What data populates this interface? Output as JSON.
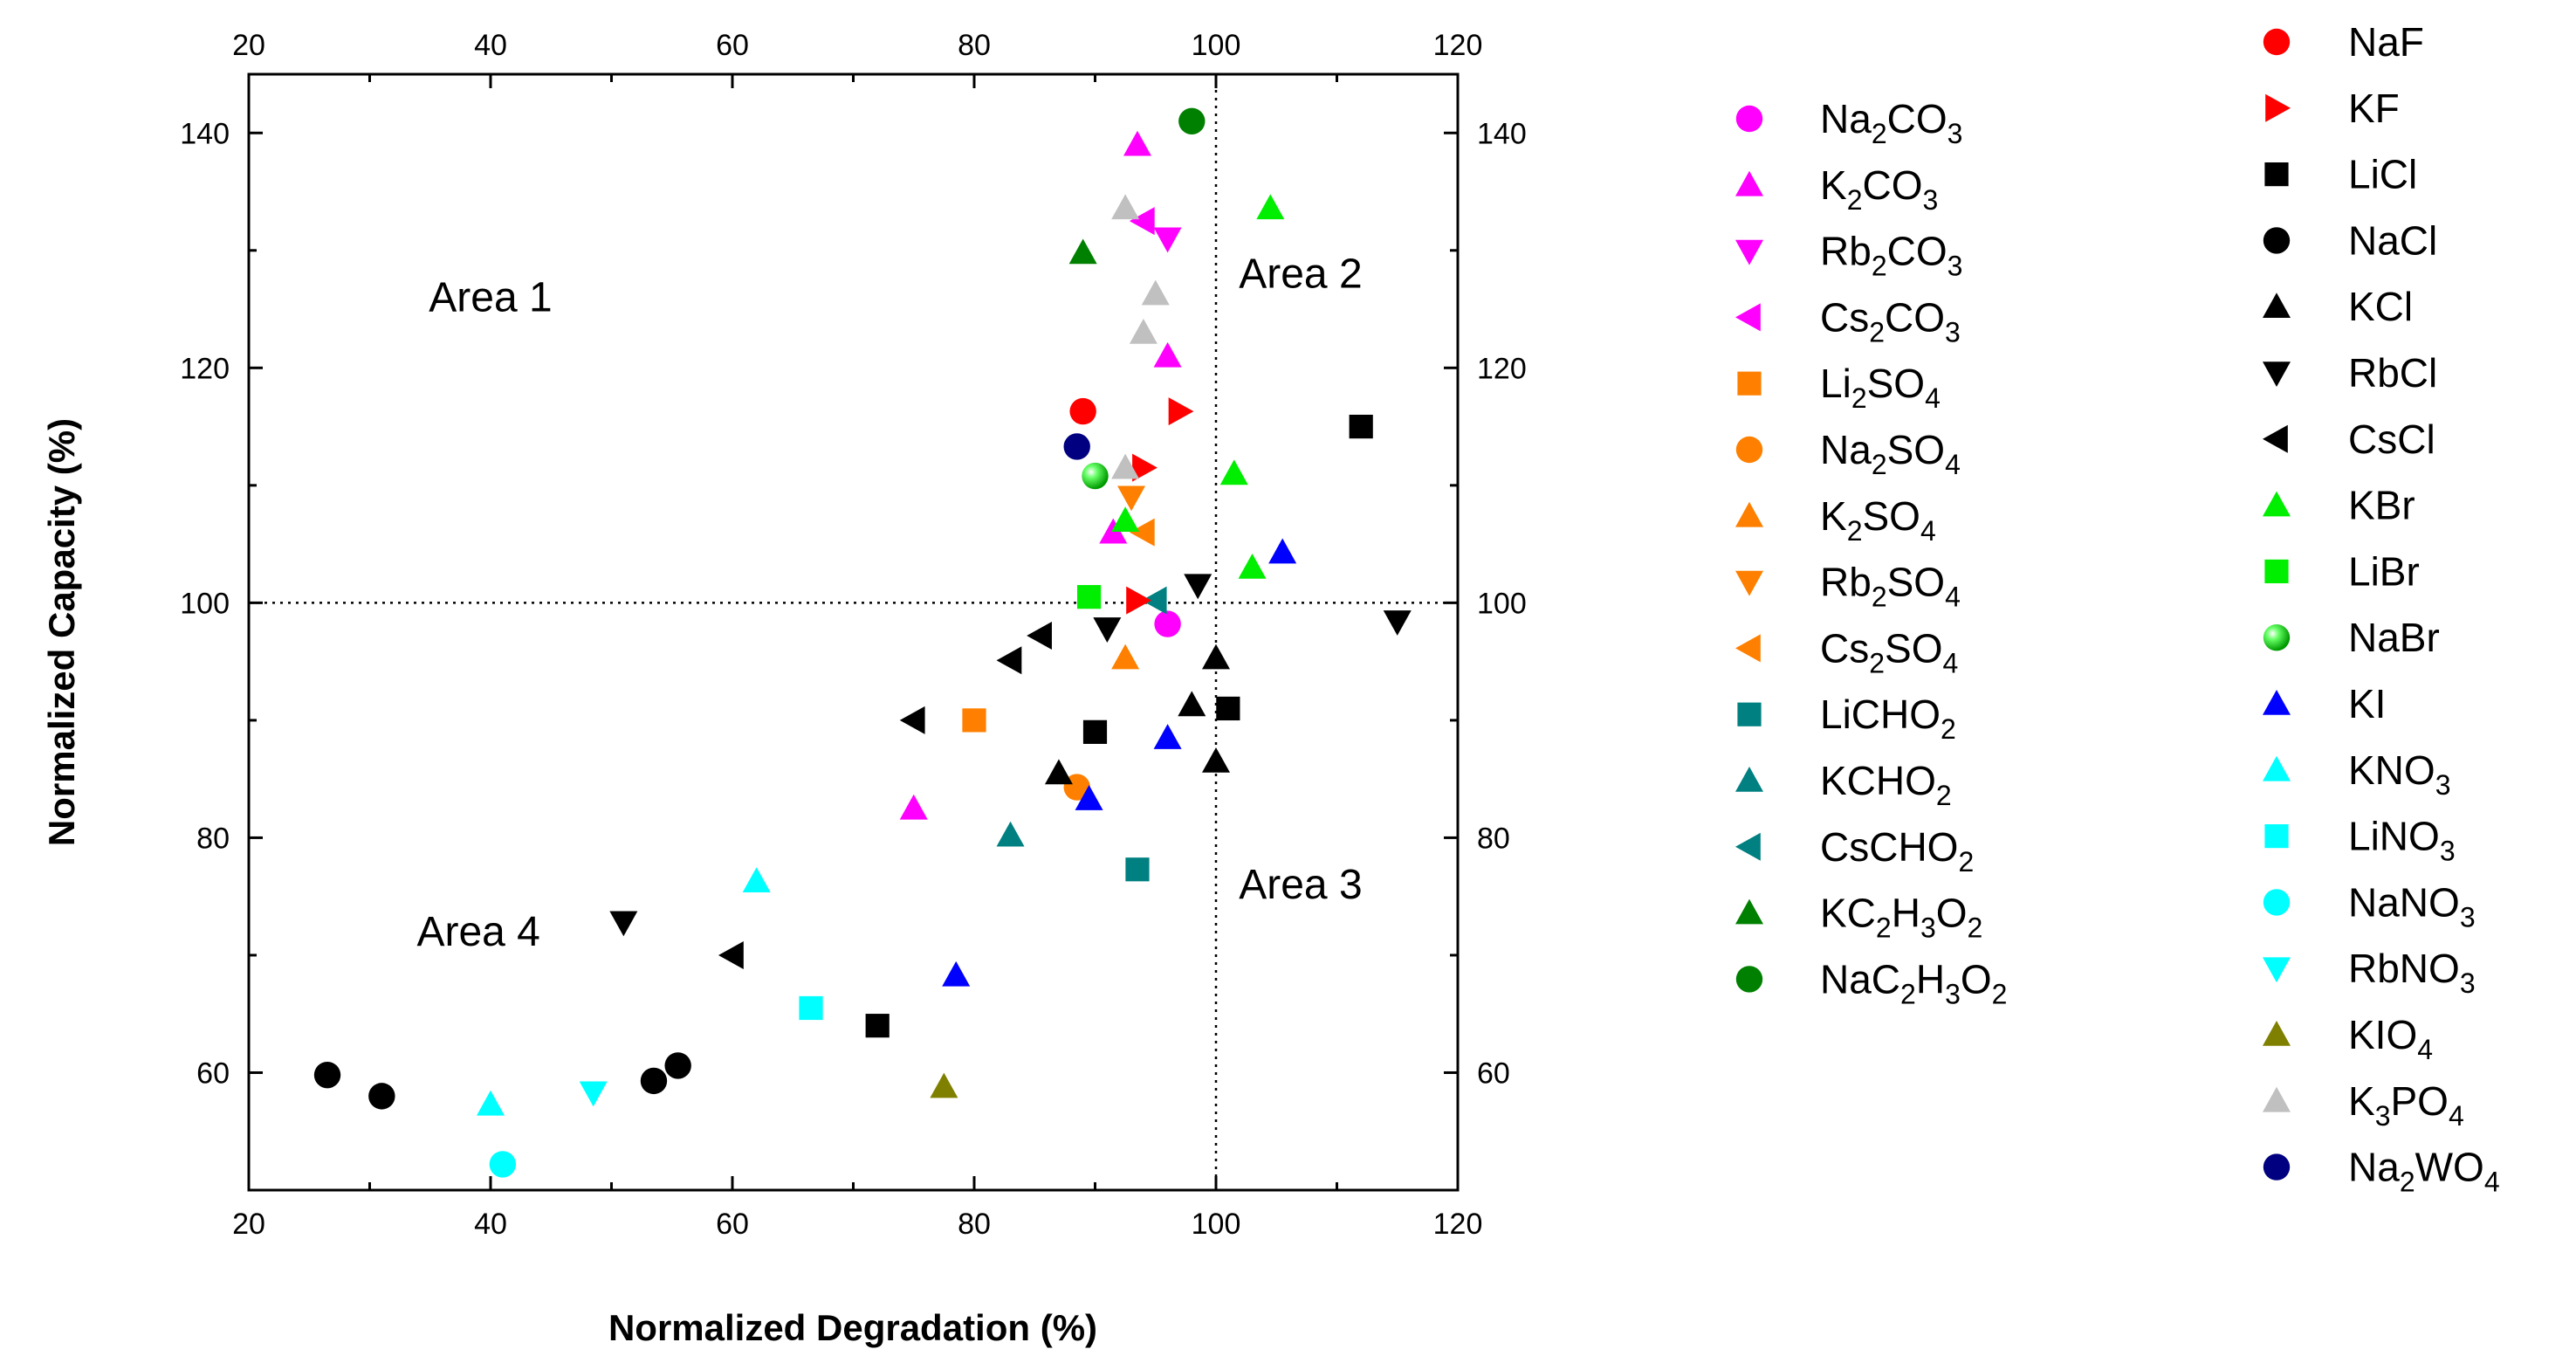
{
  "chart_data": {
    "type": "scatter",
    "title": "",
    "xlabel": "Normalized Degradation (%)",
    "ylabel": "Normalized Capacity (%)",
    "xlim": [
      20,
      120
    ],
    "ylim": [
      50,
      145
    ],
    "xticks": [
      20,
      40,
      60,
      80,
      100,
      120
    ],
    "yticks": [
      60,
      80,
      100,
      120,
      140
    ],
    "xtick_labels": [
      "20",
      "40",
      "60",
      "80",
      "100",
      "120"
    ],
    "ytick_labels": [
      "60",
      "80",
      "100",
      "120",
      "140"
    ],
    "reference_lines": {
      "x": 100,
      "y": 100,
      "style": "dotted"
    },
    "areas": [
      {
        "label": "Area 1",
        "x": 40,
        "y": 126
      },
      {
        "label": "Area 2",
        "x": 107,
        "y": 128
      },
      {
        "label": "Area 3",
        "x": 107,
        "y": 76
      },
      {
        "label": "Area 4",
        "x": 39,
        "y": 72
      }
    ],
    "series": [
      {
        "name": "Na2CO3",
        "parts": [
          [
            "Na",
            ""
          ],
          [
            "2",
            "sub"
          ],
          [
            "CO",
            ""
          ],
          [
            "3",
            "sub"
          ]
        ],
        "color": "#ff00ff",
        "marker": "circle",
        "points": [
          [
            96,
            98.2
          ]
        ]
      },
      {
        "name": "K2CO3",
        "parts": [
          [
            "K",
            ""
          ],
          [
            "2",
            "sub"
          ],
          [
            "CO",
            ""
          ],
          [
            "3",
            "sub"
          ]
        ],
        "color": "#ff00ff",
        "marker": "triangle-up",
        "points": [
          [
            93.5,
            139
          ],
          [
            96,
            121
          ],
          [
            91.5,
            106
          ],
          [
            75,
            82.5
          ]
        ]
      },
      {
        "name": "Rb2CO3",
        "parts": [
          [
            "Rb",
            ""
          ],
          [
            "2",
            "sub"
          ],
          [
            "CO",
            ""
          ],
          [
            "3",
            "sub"
          ]
        ],
        "color": "#ff00ff",
        "marker": "triangle-down",
        "points": [
          [
            96,
            131
          ]
        ]
      },
      {
        "name": "Cs2CO3",
        "parts": [
          [
            "Cs",
            ""
          ],
          [
            "2",
            "sub"
          ],
          [
            "CO",
            ""
          ],
          [
            "3",
            "sub"
          ]
        ],
        "color": "#ff00ff",
        "marker": "triangle-left",
        "points": [
          [
            94,
            132.5
          ]
        ]
      },
      {
        "name": "Li2SO4",
        "parts": [
          [
            "Li",
            ""
          ],
          [
            "2",
            "sub"
          ],
          [
            "SO",
            ""
          ],
          [
            "4",
            "sub"
          ]
        ],
        "color": "#ff8000",
        "marker": "square",
        "points": [
          [
            80,
            90
          ]
        ]
      },
      {
        "name": "Na2SO4",
        "parts": [
          [
            "Na",
            ""
          ],
          [
            "2",
            "sub"
          ],
          [
            "SO",
            ""
          ],
          [
            "4",
            "sub"
          ]
        ],
        "color": "#ff8000",
        "marker": "circle",
        "points": [
          [
            88.5,
            84.3
          ]
        ]
      },
      {
        "name": "K2SO4",
        "parts": [
          [
            "K",
            ""
          ],
          [
            "2",
            "sub"
          ],
          [
            "SO",
            ""
          ],
          [
            "4",
            "sub"
          ]
        ],
        "color": "#ff8000",
        "marker": "triangle-up",
        "points": [
          [
            92.5,
            95.3
          ]
        ]
      },
      {
        "name": "Rb2SO4",
        "parts": [
          [
            "Rb",
            ""
          ],
          [
            "2",
            "sub"
          ],
          [
            "SO",
            ""
          ],
          [
            "4",
            "sub"
          ]
        ],
        "color": "#ff8000",
        "marker": "triangle-down",
        "points": [
          [
            93,
            109
          ]
        ]
      },
      {
        "name": "Cs2SO4",
        "parts": [
          [
            "Cs",
            ""
          ],
          [
            "2",
            "sub"
          ],
          [
            "SO",
            ""
          ],
          [
            "4",
            "sub"
          ]
        ],
        "color": "#ff8000",
        "marker": "triangle-left",
        "points": [
          [
            94,
            106
          ]
        ]
      },
      {
        "name": "LiCHO2",
        "parts": [
          [
            "LiCHO",
            ""
          ],
          [
            "2",
            "sub"
          ]
        ],
        "color": "#008080",
        "marker": "square",
        "points": [
          [
            93.5,
            77.3
          ]
        ]
      },
      {
        "name": "KCHO2",
        "parts": [
          [
            "KCHO",
            ""
          ],
          [
            "2",
            "sub"
          ]
        ],
        "color": "#008080",
        "marker": "triangle-up",
        "points": [
          [
            83,
            80.2
          ]
        ]
      },
      {
        "name": "CsCHO2",
        "parts": [
          [
            "CsCHO",
            ""
          ],
          [
            "2",
            "sub"
          ]
        ],
        "color": "#008080",
        "marker": "triangle-left",
        "points": [
          [
            95,
            100.2
          ]
        ]
      },
      {
        "name": "KC2H3O2",
        "parts": [
          [
            "KC",
            ""
          ],
          [
            "2",
            "sub"
          ],
          [
            "H",
            ""
          ],
          [
            "3",
            "sub"
          ],
          [
            "O",
            ""
          ],
          [
            "2",
            "sub"
          ]
        ],
        "color": "#008000",
        "marker": "triangle-up",
        "points": [
          [
            89,
            129.8
          ]
        ]
      },
      {
        "name": "NaC2H3O2",
        "parts": [
          [
            "NaC",
            ""
          ],
          [
            "2",
            "sub"
          ],
          [
            "H",
            ""
          ],
          [
            "3",
            "sub"
          ],
          [
            "O",
            ""
          ],
          [
            "2",
            "sub"
          ]
        ],
        "color": "#008000",
        "marker": "circle",
        "points": [
          [
            98,
            141
          ]
        ]
      },
      {
        "name": "NaF",
        "parts": [
          [
            "NaF",
            ""
          ]
        ],
        "color": "#ff0000",
        "marker": "circle",
        "points": [
          [
            89,
            116.3
          ]
        ]
      },
      {
        "name": "KF",
        "parts": [
          [
            "KF",
            ""
          ]
        ],
        "color": "#ff0000",
        "marker": "triangle-right",
        "points": [
          [
            97,
            116.3
          ],
          [
            94,
            111.5
          ],
          [
            93.5,
            100.2
          ]
        ]
      },
      {
        "name": "LiCl",
        "parts": [
          [
            "LiCl",
            ""
          ]
        ],
        "color": "#000000",
        "marker": "square",
        "points": [
          [
            112,
            115
          ],
          [
            101,
            91
          ],
          [
            90,
            89
          ],
          [
            72,
            64
          ]
        ]
      },
      {
        "name": "NaCl",
        "parts": [
          [
            "NaCl",
            ""
          ]
        ],
        "color": "#000000",
        "marker": "circle",
        "points": [
          [
            26.5,
            59.8
          ],
          [
            31,
            58
          ],
          [
            53.5,
            59.3
          ],
          [
            55.5,
            60.6
          ]
        ]
      },
      {
        "name": "KCl",
        "parts": [
          [
            "KCl",
            ""
          ]
        ],
        "color": "#000000",
        "marker": "triangle-up",
        "points": [
          [
            100,
            95.3
          ],
          [
            98,
            91.3
          ],
          [
            100,
            86.5
          ],
          [
            87,
            85.5
          ]
        ]
      },
      {
        "name": "RbCl",
        "parts": [
          [
            "RbCl",
            ""
          ]
        ],
        "color": "#000000",
        "marker": "triangle-down",
        "points": [
          [
            98.5,
            101.5
          ],
          [
            91,
            97.8
          ],
          [
            115,
            98.4
          ],
          [
            51,
            72.8
          ]
        ]
      },
      {
        "name": "CsCl",
        "parts": [
          [
            "CsCl",
            ""
          ]
        ],
        "color": "#000000",
        "marker": "triangle-left",
        "points": [
          [
            85.5,
            97.2
          ],
          [
            83,
            95.1
          ],
          [
            75,
            90
          ],
          [
            60,
            70
          ]
        ]
      },
      {
        "name": "KBr",
        "parts": [
          [
            "KBr",
            ""
          ]
        ],
        "color": "#00ee00",
        "marker": "triangle-up",
        "points": [
          [
            104.5,
            133.6
          ],
          [
            101.5,
            111
          ],
          [
            103,
            103
          ],
          [
            92.5,
            107
          ]
        ]
      },
      {
        "name": "LiBr",
        "parts": [
          [
            "LiBr",
            ""
          ]
        ],
        "color": "#00ee00",
        "marker": "square",
        "points": [
          [
            89.5,
            100.5
          ]
        ]
      },
      {
        "name": "NaBr",
        "parts": [
          [
            "NaBr",
            ""
          ]
        ],
        "color": "#22dd22",
        "marker": "sphere",
        "points": [
          [
            90,
            110.8
          ]
        ]
      },
      {
        "name": "KI",
        "parts": [
          [
            "KI",
            ""
          ]
        ],
        "color": "#0000ff",
        "marker": "triangle-up",
        "points": [
          [
            105.5,
            104.3
          ],
          [
            96,
            88.5
          ],
          [
            89.5,
            83.3
          ],
          [
            78.5,
            68.3
          ]
        ]
      },
      {
        "name": "KNO3",
        "parts": [
          [
            "KNO",
            ""
          ],
          [
            "3",
            "sub"
          ]
        ],
        "color": "#00ffff",
        "marker": "triangle-up",
        "points": [
          [
            62,
            76.3
          ],
          [
            40,
            57.3
          ]
        ]
      },
      {
        "name": "LiNO3",
        "parts": [
          [
            "LiNO",
            ""
          ],
          [
            "3",
            "sub"
          ]
        ],
        "color": "#00ffff",
        "marker": "square",
        "points": [
          [
            66.5,
            65.5
          ]
        ]
      },
      {
        "name": "NaNO3",
        "parts": [
          [
            "NaNO",
            ""
          ],
          [
            "3",
            "sub"
          ]
        ],
        "color": "#00ffff",
        "marker": "circle",
        "points": [
          [
            41,
            52.2
          ]
        ]
      },
      {
        "name": "RbNO3",
        "parts": [
          [
            "RbNO",
            ""
          ],
          [
            "3",
            "sub"
          ]
        ],
        "color": "#00ffff",
        "marker": "triangle-down",
        "points": [
          [
            48.5,
            58.3
          ]
        ]
      },
      {
        "name": "KIO4",
        "parts": [
          [
            "KIO",
            ""
          ],
          [
            "4",
            "sub"
          ]
        ],
        "color": "#808000",
        "marker": "triangle-up",
        "points": [
          [
            77.5,
            58.8
          ]
        ]
      },
      {
        "name": "K3PO4",
        "parts": [
          [
            "K",
            ""
          ],
          [
            "3",
            "sub"
          ],
          [
            "PO",
            ""
          ],
          [
            "4",
            "sub"
          ]
        ],
        "color": "#c0c0c0",
        "marker": "triangle-up",
        "points": [
          [
            92.5,
            133.6
          ],
          [
            95,
            126.3
          ],
          [
            94,
            123
          ],
          [
            92.5,
            111.5
          ]
        ]
      },
      {
        "name": "Na2WO4",
        "parts": [
          [
            "Na",
            ""
          ],
          [
            "2",
            "sub"
          ],
          [
            "WO",
            ""
          ],
          [
            "4",
            "sub"
          ]
        ],
        "color": "#000080",
        "marker": "circle",
        "points": [
          [
            88.5,
            113.3
          ]
        ]
      }
    ],
    "legend": {
      "placement": "right",
      "columns": 2
    }
  }
}
